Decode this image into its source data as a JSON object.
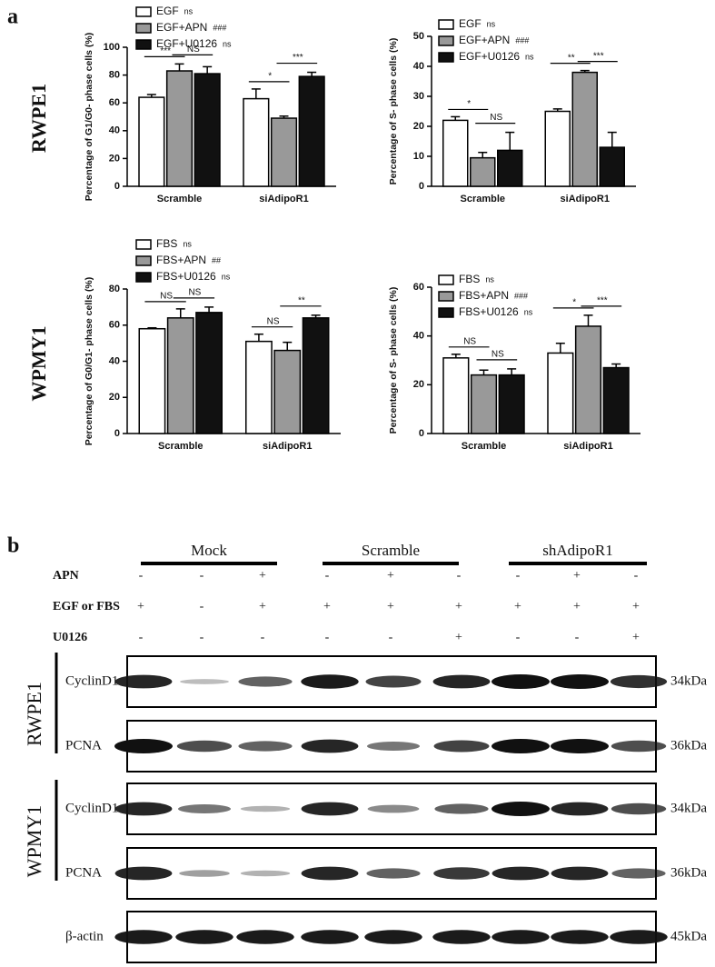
{
  "panel_labels": [
    "a",
    "b"
  ],
  "row_labels": [
    "RWPE1",
    "WPMY1"
  ],
  "chart_data": [
    {
      "type": "bar",
      "y_label": "Percentage of G1/G0- phase cells (%)",
      "categories": [
        "Scramble",
        "siAdipoR1"
      ],
      "series": [
        {
          "name": "EGF",
          "note": "ns",
          "color": "#ffffff",
          "values": [
            64,
            63
          ],
          "errors": [
            2,
            7
          ]
        },
        {
          "name": "EGF+APN",
          "note": "###",
          "color": "#999999",
          "values": [
            83,
            49
          ],
          "errors": [
            5,
            1.5
          ]
        },
        {
          "name": "EGF+U0126",
          "note": "ns",
          "color": "#111111",
          "values": [
            81,
            79
          ],
          "errors": [
            5,
            3
          ]
        }
      ],
      "significance": [
        [
          "***",
          "NS"
        ],
        [
          "*",
          "***"
        ]
      ],
      "ylim": [
        0,
        100
      ],
      "yticks": [
        0,
        20,
        40,
        60,
        80,
        100
      ]
    },
    {
      "type": "bar",
      "y_label": "Percentage of S- phase cells (%)",
      "categories": [
        "Scramble",
        "siAdipoR1"
      ],
      "series": [
        {
          "name": "EGF",
          "note": "ns",
          "color": "#ffffff",
          "values": [
            22,
            25
          ],
          "errors": [
            1.2,
            0.8
          ]
        },
        {
          "name": "EGF+APN",
          "note": "###",
          "color": "#999999",
          "values": [
            9.5,
            38
          ],
          "errors": [
            1.8,
            0.6
          ]
        },
        {
          "name": "EGF+U0126",
          "note": "ns",
          "color": "#111111",
          "values": [
            12,
            13
          ],
          "errors": [
            6,
            5
          ]
        }
      ],
      "significance": [
        [
          "*",
          "NS"
        ],
        [
          "**",
          "***"
        ]
      ],
      "ylim": [
        0,
        50
      ],
      "yticks": [
        0,
        10,
        20,
        30,
        40,
        50
      ]
    },
    {
      "type": "bar",
      "y_label": "Percentage of G0/G1- phase cells (%)",
      "categories": [
        "Scramble",
        "siAdipoR1"
      ],
      "series": [
        {
          "name": "FBS",
          "note": "ns",
          "color": "#ffffff",
          "values": [
            58,
            51
          ],
          "errors": [
            0.5,
            4
          ]
        },
        {
          "name": "FBS+APN",
          "note": "##",
          "color": "#999999",
          "values": [
            64,
            46
          ],
          "errors": [
            5,
            4.5
          ]
        },
        {
          "name": "FBS+U0126",
          "note": "ns",
          "color": "#111111",
          "values": [
            67,
            64
          ],
          "errors": [
            3,
            1.5
          ]
        }
      ],
      "significance": [
        [
          "NS",
          "NS"
        ],
        [
          "NS",
          "**"
        ]
      ],
      "ylim": [
        0,
        80
      ],
      "yticks": [
        0,
        20,
        40,
        60,
        80
      ]
    },
    {
      "type": "bar",
      "y_label": "Percentage of S- phase cells (%)",
      "categories": [
        "Scramble",
        "siAdipoR1"
      ],
      "series": [
        {
          "name": "FBS",
          "note": "ns",
          "color": "#ffffff",
          "values": [
            31,
            33
          ],
          "errors": [
            1.5,
            4
          ]
        },
        {
          "name": "FBS+APN",
          "note": "###",
          "color": "#999999",
          "values": [
            24,
            44
          ],
          "errors": [
            2,
            4.5
          ]
        },
        {
          "name": "FBS+U0126",
          "note": "ns",
          "color": "#111111",
          "values": [
            24,
            27
          ],
          "errors": [
            2.5,
            1.5
          ]
        }
      ],
      "significance": [
        [
          "NS",
          "NS"
        ],
        [
          "*",
          "***"
        ]
      ],
      "ylim": [
        0,
        60
      ],
      "yticks": [
        0,
        20,
        40,
        60
      ]
    }
  ],
  "blot": {
    "groups": [
      "Mock",
      "Scramble",
      "shAdipoR1"
    ],
    "treatments": [
      {
        "name": "APN",
        "signs": [
          "-",
          "-",
          "+",
          "-",
          "+",
          "-",
          "-",
          "+",
          "-"
        ]
      },
      {
        "name": "EGF or FBS",
        "signs": [
          "+",
          "-",
          "+",
          "+",
          "+",
          "+",
          "+",
          "+",
          "+"
        ]
      },
      {
        "name": "U0126",
        "signs": [
          "-",
          "-",
          "-",
          "-",
          "-",
          "+",
          "-",
          "-",
          "+"
        ]
      }
    ],
    "blocks": [
      {
        "cell_line": "RWPE1",
        "rows": [
          {
            "protein": "CyclinD1",
            "size": "34kDa"
          },
          {
            "protein": "PCNA",
            "size": "36kDa"
          }
        ]
      },
      {
        "cell_line": "WPMY1",
        "rows": [
          {
            "protein": "CyclinD1",
            "size": "34kDa"
          },
          {
            "protein": "PCNA",
            "size": "36kDa"
          }
        ]
      }
    ],
    "loading": {
      "protein": "β-actin",
      "size": "45kDa"
    }
  }
}
